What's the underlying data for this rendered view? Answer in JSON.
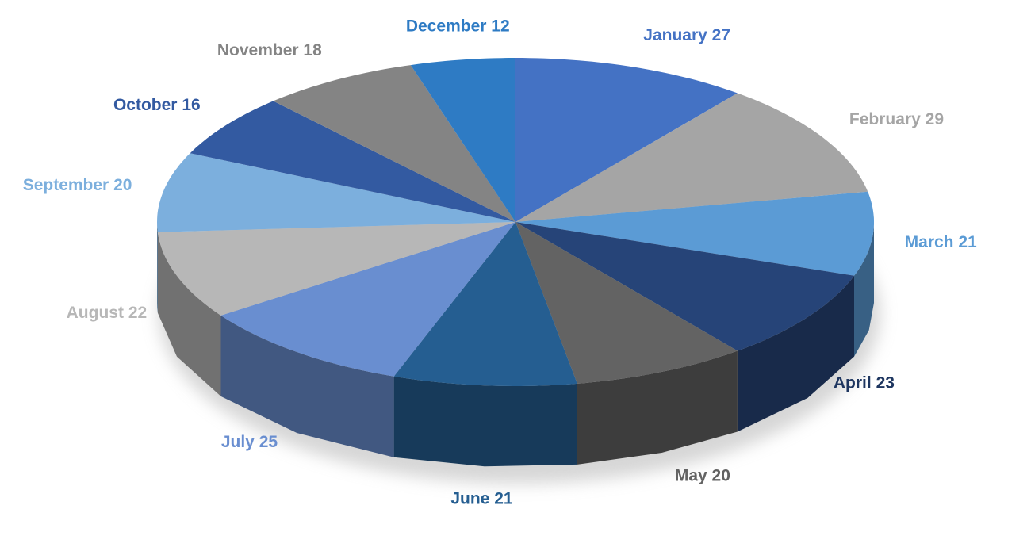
{
  "chart_data": {
    "type": "pie3d",
    "categories": [
      "January",
      "February",
      "March",
      "April",
      "May",
      "June",
      "July",
      "August",
      "September",
      "October",
      "November",
      "December"
    ],
    "values": [
      27,
      29,
      21,
      23,
      20,
      21,
      25,
      22,
      20,
      16,
      18,
      12
    ],
    "colors": [
      "#4472c4",
      "#a5a5a5",
      "#5b9bd5",
      "#264478",
      "#636363",
      "#255e91",
      "#698ed0",
      "#b7b7b7",
      "#7cafdd",
      "#335aa1",
      "#848484",
      "#2e7bc4"
    ]
  }
}
